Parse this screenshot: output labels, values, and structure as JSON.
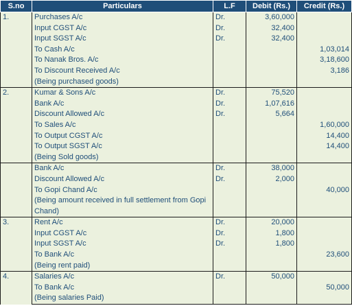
{
  "headers": {
    "sno": "S.no",
    "particulars": "Particulars",
    "lf": "L.F",
    "debit": "Debit (Rs.)",
    "credit": "Credit (Rs.)"
  },
  "entries": [
    {
      "sno": "1.",
      "lines": [
        {
          "text": "Purchases A/c",
          "lf": "Dr.",
          "debit": "3,60,000",
          "credit": ""
        },
        {
          "text": "Input CGST A/c",
          "lf": "Dr.",
          "debit": "32,400",
          "credit": ""
        },
        {
          "text": "Input SGST A/c",
          "lf": "Dr.",
          "debit": "32,400",
          "credit": ""
        },
        {
          "text": "To Cash A/c",
          "lf": "",
          "debit": "",
          "credit": "1,03,014"
        },
        {
          "text": "To Nanak Bros. A/c",
          "lf": "",
          "debit": "",
          "credit": "3,18,600"
        },
        {
          "text": "To Discount Received A/c",
          "lf": "",
          "debit": "",
          "credit": "3,186"
        }
      ],
      "narration": "(Being purchased goods)"
    },
    {
      "sno": "2.",
      "lines": [
        {
          "text": "Kumar & Sons A/c",
          "lf": "Dr.",
          "debit": "75,520",
          "credit": ""
        },
        {
          "text": "Bank A/c",
          "lf": "Dr.",
          "debit": "1,07,616",
          "credit": ""
        },
        {
          "text": "Discount Allowed A/c",
          "lf": "Dr.",
          "debit": "5,664",
          "credit": ""
        },
        {
          "text": "To Sales A/c",
          "lf": "",
          "debit": "",
          "credit": "1,60,000"
        },
        {
          "text": "To Output CGST A/c",
          "lf": "",
          "debit": "",
          "credit": "14,400"
        },
        {
          "text": "To Output SGST A/c",
          "lf": "",
          "debit": "",
          "credit": "14,400"
        }
      ],
      "narration": "(Being Sold goods)"
    },
    {
      "sno": "",
      "lines": [
        {
          "text": "Bank A/c",
          "lf": "Dr.",
          "debit": "38,000",
          "credit": ""
        },
        {
          "text": "Discount Allowed A/c",
          "lf": "Dr.",
          "debit": "2,000",
          "credit": ""
        },
        {
          "text": "To Gopi Chand A/c",
          "lf": "",
          "debit": "",
          "credit": "40,000"
        }
      ],
      "narration": "(Being amount received in full settlement from Gopi Chand)"
    },
    {
      "sno": "3.",
      "lines": [
        {
          "text": "Rent A/c",
          "lf": "Dr.",
          "debit": "20,000",
          "credit": ""
        },
        {
          "text": "Input CGST A/c",
          "lf": "Dr.",
          "debit": "1,800",
          "credit": ""
        },
        {
          "text": "Input SGST A/c",
          "lf": "Dr.",
          "debit": "1,800",
          "credit": ""
        },
        {
          "text": "To Bank A/c",
          "lf": "",
          "debit": "",
          "credit": "23,600"
        }
      ],
      "narration": "(Being rent paid)"
    },
    {
      "sno": "4.",
      "lines": [
        {
          "text": "Salaries A/c",
          "lf": "Dr.",
          "debit": "50,000",
          "credit": ""
        },
        {
          "text": "To Bank A/c",
          "lf": "",
          "debit": "",
          "credit": "50,000"
        }
      ],
      "narration": "(Being salaries Paid)"
    }
  ]
}
